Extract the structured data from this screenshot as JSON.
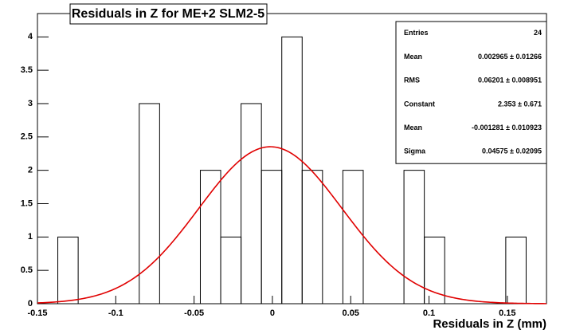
{
  "chart_data": {
    "type": "histogram",
    "title": "Residuals in Z for ME+2 SLM2-5",
    "x_label": "Residuals in Z (mm)",
    "bins": [
      -0.15,
      -0.137,
      -0.124,
      -0.111,
      -0.098,
      -0.085,
      -0.072,
      -0.059,
      -0.046,
      -0.033,
      -0.02,
      -0.007,
      0.006,
      0.019,
      0.032,
      0.045,
      0.058,
      0.071,
      0.084,
      0.097,
      0.11,
      0.123,
      0.136,
      0.149,
      0.162,
      0.175
    ],
    "counts": [
      0,
      1,
      0,
      0,
      0,
      3,
      0,
      0,
      2,
      1,
      3,
      2,
      4,
      2,
      0,
      2,
      0,
      0,
      2,
      1,
      0,
      0,
      0,
      1,
      0
    ],
    "color": "#000000",
    "fit_color": "#e00000",
    "xlim": [
      -0.15,
      0.175
    ],
    "xticks": [
      -0.15,
      -0.1,
      -0.05,
      0,
      0.05,
      0.1,
      0.15
    ],
    "ylim": [
      0,
      4.35
    ],
    "yticks": [
      0,
      0.5,
      1,
      1.5,
      2,
      2.5,
      3,
      3.5,
      4
    ],
    "stats": [
      {
        "name": "Entries",
        "value": 24
      },
      {
        "name": "Mean",
        "value": 0.002965,
        "error": 0.01266,
        "label": "0.002965 ± 0.01266"
      },
      {
        "name": "RMS",
        "value": 0.06201,
        "error": 0.008951,
        "label": "0.06201 ± 0.008951"
      },
      {
        "name": "Constant",
        "value": 2.353,
        "error": 0.671,
        "label": "2.353 ± 0.671"
      },
      {
        "name": "Mean",
        "value": -0.001281,
        "error": 0.010923,
        "label": "-0.001281 ± 0.010923"
      },
      {
        "name": "Sigma",
        "value": 0.04575,
        "error": 0.02095,
        "label": "0.04575 ± 0.02095"
      }
    ]
  }
}
